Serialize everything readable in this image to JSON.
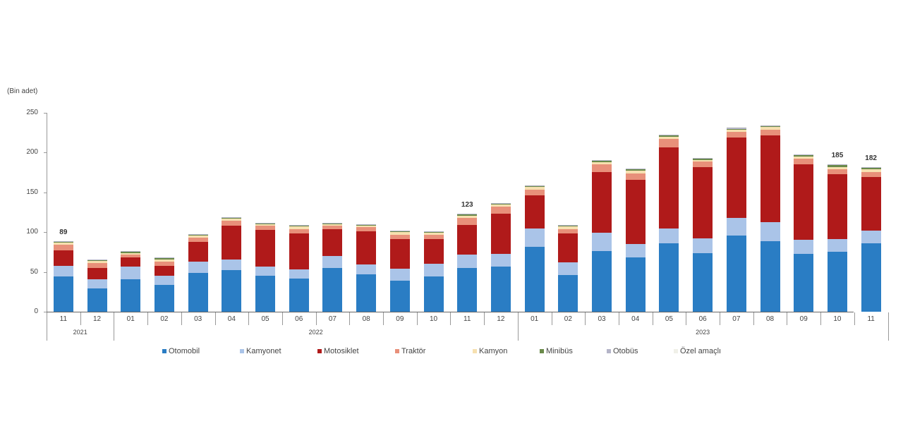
{
  "chart_data": {
    "type": "bar",
    "stacked": true,
    "title": "",
    "ylabel": "(Bin adet)",
    "xlabel": "",
    "ylim": [
      0,
      250
    ],
    "yticks": [
      0,
      50,
      100,
      150,
      200,
      250
    ],
    "grid": false,
    "legend_position": "bottom",
    "categories": [
      "11",
      "12",
      "01",
      "02",
      "03",
      "04",
      "05",
      "06",
      "07",
      "08",
      "09",
      "10",
      "11",
      "12",
      "01",
      "02",
      "03",
      "04",
      "05",
      "06",
      "07",
      "08",
      "09",
      "10",
      "11"
    ],
    "year_groups": [
      {
        "label": "2021",
        "start": 0,
        "end": 1
      },
      {
        "label": "2022",
        "start": 2,
        "end": 13
      },
      {
        "label": "2023",
        "start": 14,
        "end": 24
      }
    ],
    "totals_labels": {
      "0": "89",
      "12": "123",
      "23": "185",
      "24": "182"
    },
    "series": [
      {
        "name": "Otomobil",
        "color": "#2a7dc4",
        "values": [
          44,
          29,
          41,
          34,
          49,
          52,
          45,
          42,
          55,
          47,
          39,
          44,
          55,
          57,
          82,
          46,
          76,
          68,
          86,
          74,
          96,
          89,
          73,
          75,
          86
        ]
      },
      {
        "name": "Kamyonet",
        "color": "#aac4e8",
        "values": [
          14,
          12,
          16,
          11,
          14,
          14,
          12,
          11,
          15,
          12,
          15,
          16,
          17,
          16,
          23,
          16,
          23,
          17,
          19,
          18,
          22,
          24,
          17,
          16,
          16
        ]
      },
      {
        "name": "Motosiklet",
        "color": "#b01a1a",
        "values": [
          19,
          14,
          11,
          13,
          25,
          42,
          46,
          45,
          34,
          42,
          37,
          31,
          37,
          50,
          41,
          36,
          77,
          81,
          102,
          90,
          101,
          109,
          95,
          82,
          67
        ]
      },
      {
        "name": "Traktör",
        "color": "#e8907a",
        "values": [
          7,
          6,
          4,
          5,
          5,
          6,
          5,
          6,
          4,
          5,
          6,
          6,
          9,
          9,
          7,
          6,
          9,
          8,
          10,
          7,
          7,
          7,
          7,
          6,
          7
        ]
      },
      {
        "name": "Kamyon",
        "color": "#f6e0b0",
        "values": [
          3,
          3,
          2,
          3,
          3,
          3,
          2,
          3,
          2,
          2,
          3,
          2,
          3,
          3,
          4,
          3,
          3,
          3,
          3,
          2,
          3,
          3,
          3,
          3,
          3
        ]
      },
      {
        "name": "Minibüs",
        "color": "#6a8a4a",
        "values": [
          1,
          1,
          1,
          1,
          1,
          1,
          1,
          1,
          1,
          1,
          1,
          1,
          1,
          1,
          1,
          1,
          2,
          2,
          2,
          1,
          1,
          1,
          2,
          2,
          2
        ]
      },
      {
        "name": "Otobüs",
        "color": "#b4b4c8",
        "values": [
          1,
          1,
          1,
          1,
          1,
          1,
          1,
          1,
          1,
          1,
          1,
          1,
          1,
          1,
          1,
          1,
          1,
          1,
          1,
          1,
          1,
          1,
          1,
          1,
          1
        ]
      },
      {
        "name": "Özel amaçlı",
        "color": "#f0f0e8",
        "values": [
          0,
          0,
          0,
          0,
          0,
          0,
          0,
          0,
          0,
          0,
          0,
          0,
          0,
          0,
          1,
          0,
          0,
          0,
          0,
          0,
          1,
          1,
          0,
          0,
          0
        ]
      }
    ]
  },
  "axis": {
    "ylabel": "(Bin adet)",
    "ytick_labels": [
      "0",
      "50",
      "100",
      "150",
      "200",
      "250"
    ]
  },
  "legend": {
    "items": [
      "Otomobil",
      "Kamyonet",
      "Motosiklet",
      "Traktör",
      "Kamyon",
      "Minibüs",
      "Otobüs",
      "Özel amaçlı"
    ]
  }
}
